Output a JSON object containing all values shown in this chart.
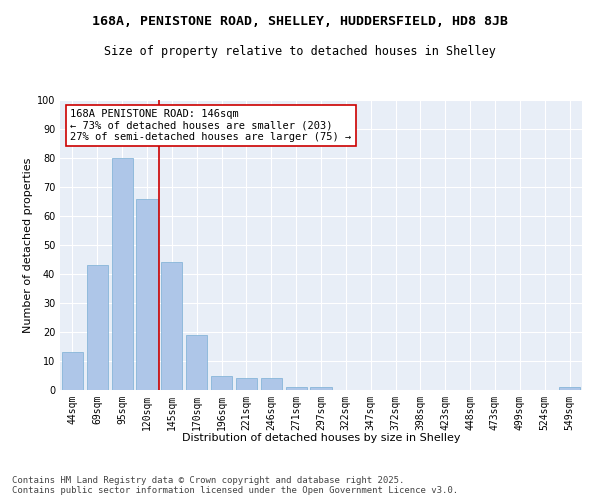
{
  "title_line1": "168A, PENISTONE ROAD, SHELLEY, HUDDERSFIELD, HD8 8JB",
  "title_line2": "Size of property relative to detached houses in Shelley",
  "xlabel": "Distribution of detached houses by size in Shelley",
  "ylabel": "Number of detached properties",
  "categories": [
    "44sqm",
    "69sqm",
    "95sqm",
    "120sqm",
    "145sqm",
    "170sqm",
    "196sqm",
    "221sqm",
    "246sqm",
    "271sqm",
    "297sqm",
    "322sqm",
    "347sqm",
    "372sqm",
    "398sqm",
    "423sqm",
    "448sqm",
    "473sqm",
    "499sqm",
    "524sqm",
    "549sqm"
  ],
  "values": [
    13,
    43,
    80,
    66,
    44,
    19,
    5,
    4,
    4,
    1,
    1,
    0,
    0,
    0,
    0,
    0,
    0,
    0,
    0,
    0,
    1
  ],
  "bar_color": "#aec6e8",
  "bar_edge_color": "#7aafd4",
  "background_color": "#e8eef7",
  "grid_color": "#ffffff",
  "annotation_line1": "168A PENISTONE ROAD: 146sqm",
  "annotation_line2": "← 73% of detached houses are smaller (203)",
  "annotation_line3": "27% of semi-detached houses are larger (75) →",
  "annotation_box_color": "#ffffff",
  "annotation_box_edge_color": "#cc0000",
  "red_line_color": "#cc0000",
  "red_line_x": 3.5,
  "ylim": [
    0,
    100
  ],
  "yticks": [
    0,
    10,
    20,
    30,
    40,
    50,
    60,
    70,
    80,
    90,
    100
  ],
  "footnote": "Contains HM Land Registry data © Crown copyright and database right 2025.\nContains public sector information licensed under the Open Government Licence v3.0.",
  "title_fontsize": 9.5,
  "subtitle_fontsize": 8.5,
  "axis_label_fontsize": 8,
  "tick_fontsize": 7,
  "annotation_fontsize": 7.5,
  "footnote_fontsize": 6.5
}
